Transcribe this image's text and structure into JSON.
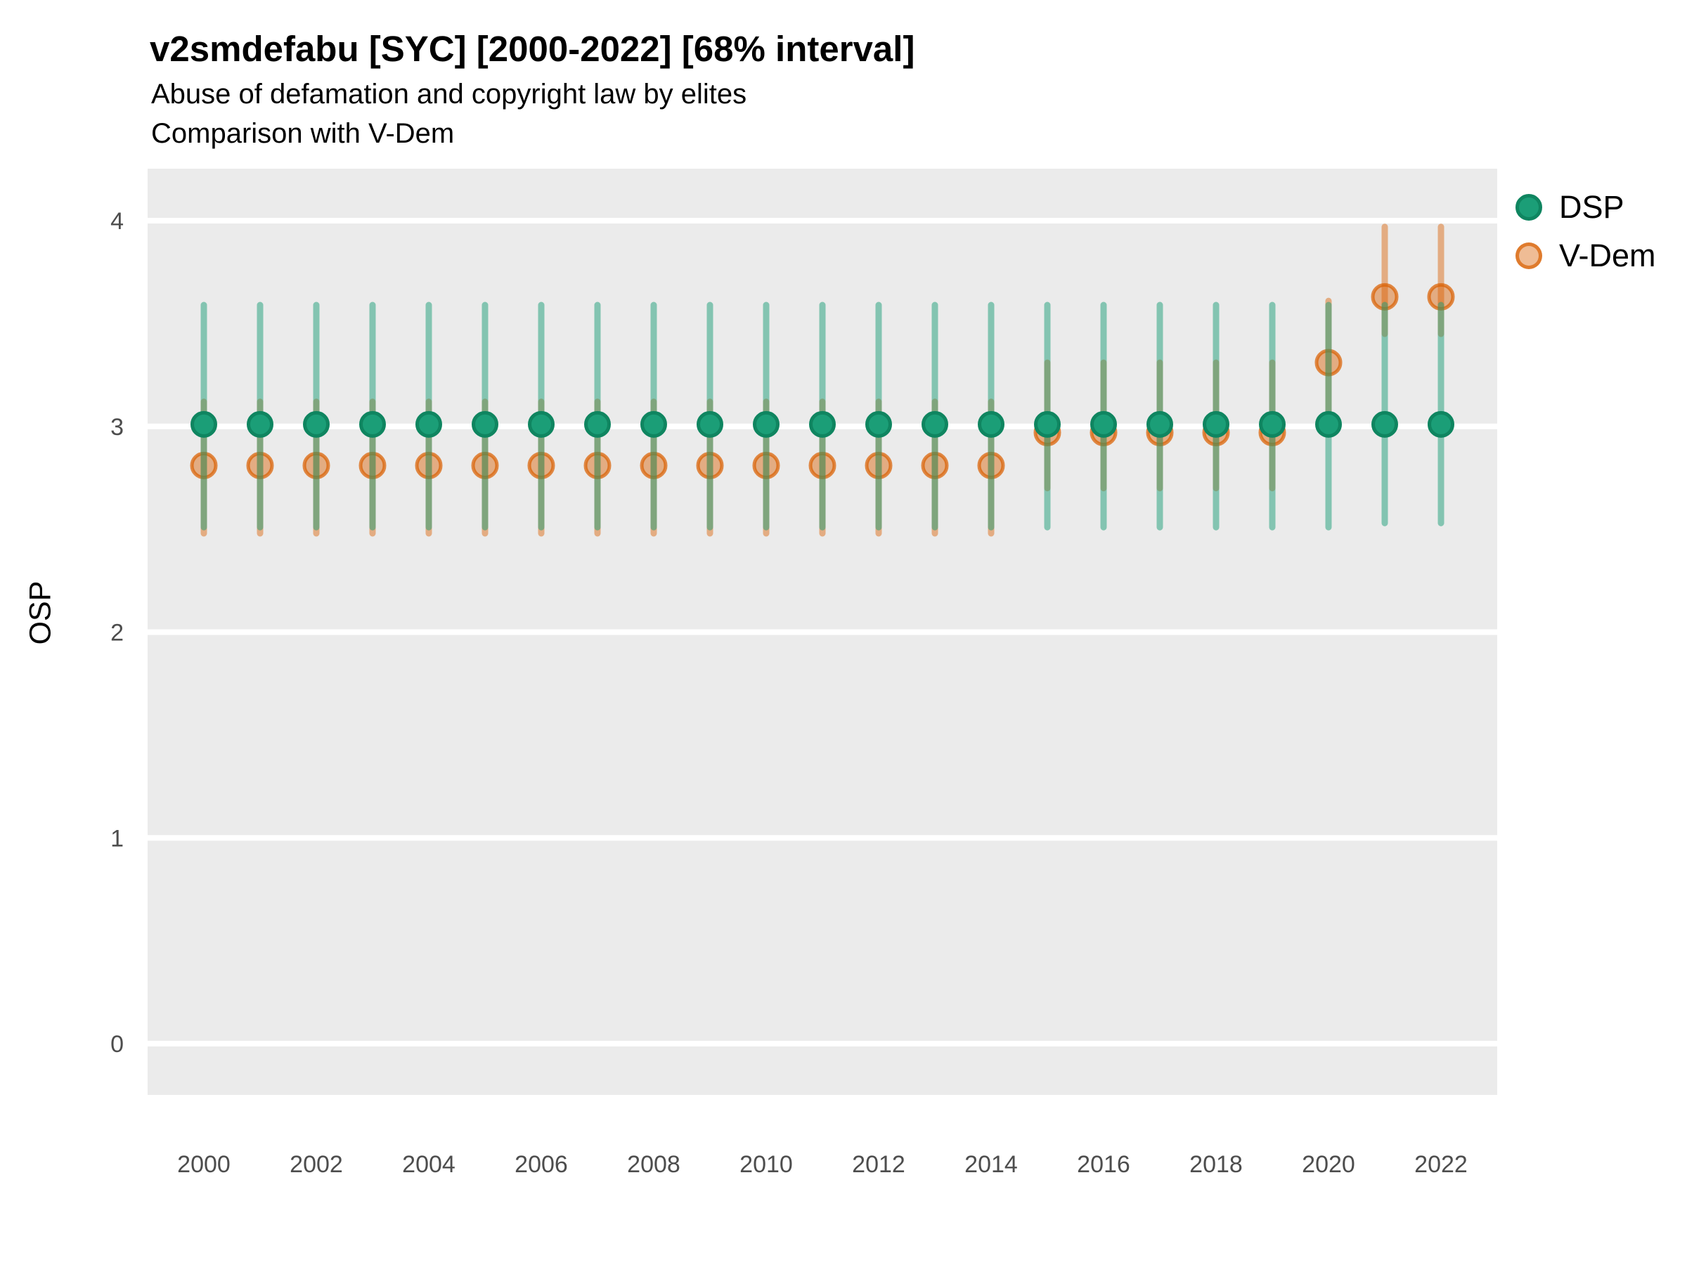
{
  "header": {
    "title": "v2smdefabu [SYC] [2000-2022] [68% interval]",
    "subtitle1": "Abuse of defamation and copyright law by elites",
    "subtitle2": "Comparison with V-Dem"
  },
  "chart_data": {
    "type": "pointrange-scatter",
    "title": "v2smdefabu [SYC] [2000-2022] [68% interval]",
    "subtitle": [
      "Abuse of defamation and copyright law by elites",
      "Comparison with V-Dem"
    ],
    "interval": "68%",
    "xlabel": "",
    "ylabel": "OSP",
    "x_ticks": [
      2000,
      2002,
      2004,
      2006,
      2008,
      2010,
      2012,
      2014,
      2016,
      2018,
      2020,
      2022
    ],
    "y_ticks": [
      4,
      3,
      2,
      1,
      0
    ],
    "ylim": [
      -0.3,
      4.25
    ],
    "grid": "major-horizontal-only",
    "legend_position": "right",
    "panel_background": "#EBEBEB",
    "gridline_color": "#FFFFFF",
    "tick_text_color": "#4D4D4D",
    "legend": [
      {
        "name": "DSP",
        "color": "#1B9E77"
      },
      {
        "name": "V-Dem",
        "color": "#D95F02"
      }
    ],
    "years": [
      2000,
      2001,
      2002,
      2003,
      2004,
      2005,
      2006,
      2007,
      2008,
      2009,
      2010,
      2011,
      2012,
      2013,
      2014,
      2015,
      2016,
      2017,
      2018,
      2019,
      2020,
      2021,
      2022
    ],
    "series": [
      {
        "name": "DSP",
        "color": "#1B9E77",
        "est": [
          3.01,
          3.01,
          3.01,
          3.01,
          3.01,
          3.01,
          3.01,
          3.01,
          3.01,
          3.01,
          3.01,
          3.01,
          3.01,
          3.01,
          3.01,
          3.01,
          3.01,
          3.01,
          3.01,
          3.01,
          3.01,
          3.01,
          3.01
        ],
        "lo": [
          2.51,
          2.51,
          2.51,
          2.51,
          2.51,
          2.51,
          2.51,
          2.51,
          2.51,
          2.51,
          2.51,
          2.51,
          2.51,
          2.51,
          2.51,
          2.51,
          2.51,
          2.51,
          2.51,
          2.51,
          2.51,
          2.53,
          2.53
        ],
        "hi": [
          3.59,
          3.59,
          3.59,
          3.59,
          3.59,
          3.59,
          3.59,
          3.59,
          3.59,
          3.59,
          3.59,
          3.59,
          3.59,
          3.59,
          3.59,
          3.59,
          3.59,
          3.59,
          3.59,
          3.59,
          3.59,
          3.59,
          3.59
        ]
      },
      {
        "name": "V-Dem",
        "color": "#D95F02",
        "est": [
          2.81,
          2.81,
          2.81,
          2.81,
          2.81,
          2.81,
          2.81,
          2.81,
          2.81,
          2.81,
          2.81,
          2.81,
          2.81,
          2.81,
          2.81,
          2.97,
          2.97,
          2.97,
          2.97,
          2.97,
          3.31,
          3.63,
          3.63
        ],
        "lo": [
          2.48,
          2.48,
          2.48,
          2.48,
          2.48,
          2.48,
          2.48,
          2.48,
          2.48,
          2.48,
          2.48,
          2.48,
          2.48,
          2.48,
          2.48,
          2.7,
          2.7,
          2.7,
          2.7,
          2.7,
          2.98,
          3.45,
          3.45
        ],
        "hi": [
          3.12,
          3.12,
          3.12,
          3.12,
          3.12,
          3.12,
          3.12,
          3.12,
          3.12,
          3.12,
          3.12,
          3.12,
          3.12,
          3.12,
          3.12,
          3.31,
          3.31,
          3.31,
          3.31,
          3.31,
          3.61,
          3.97,
          3.97
        ]
      }
    ]
  }
}
